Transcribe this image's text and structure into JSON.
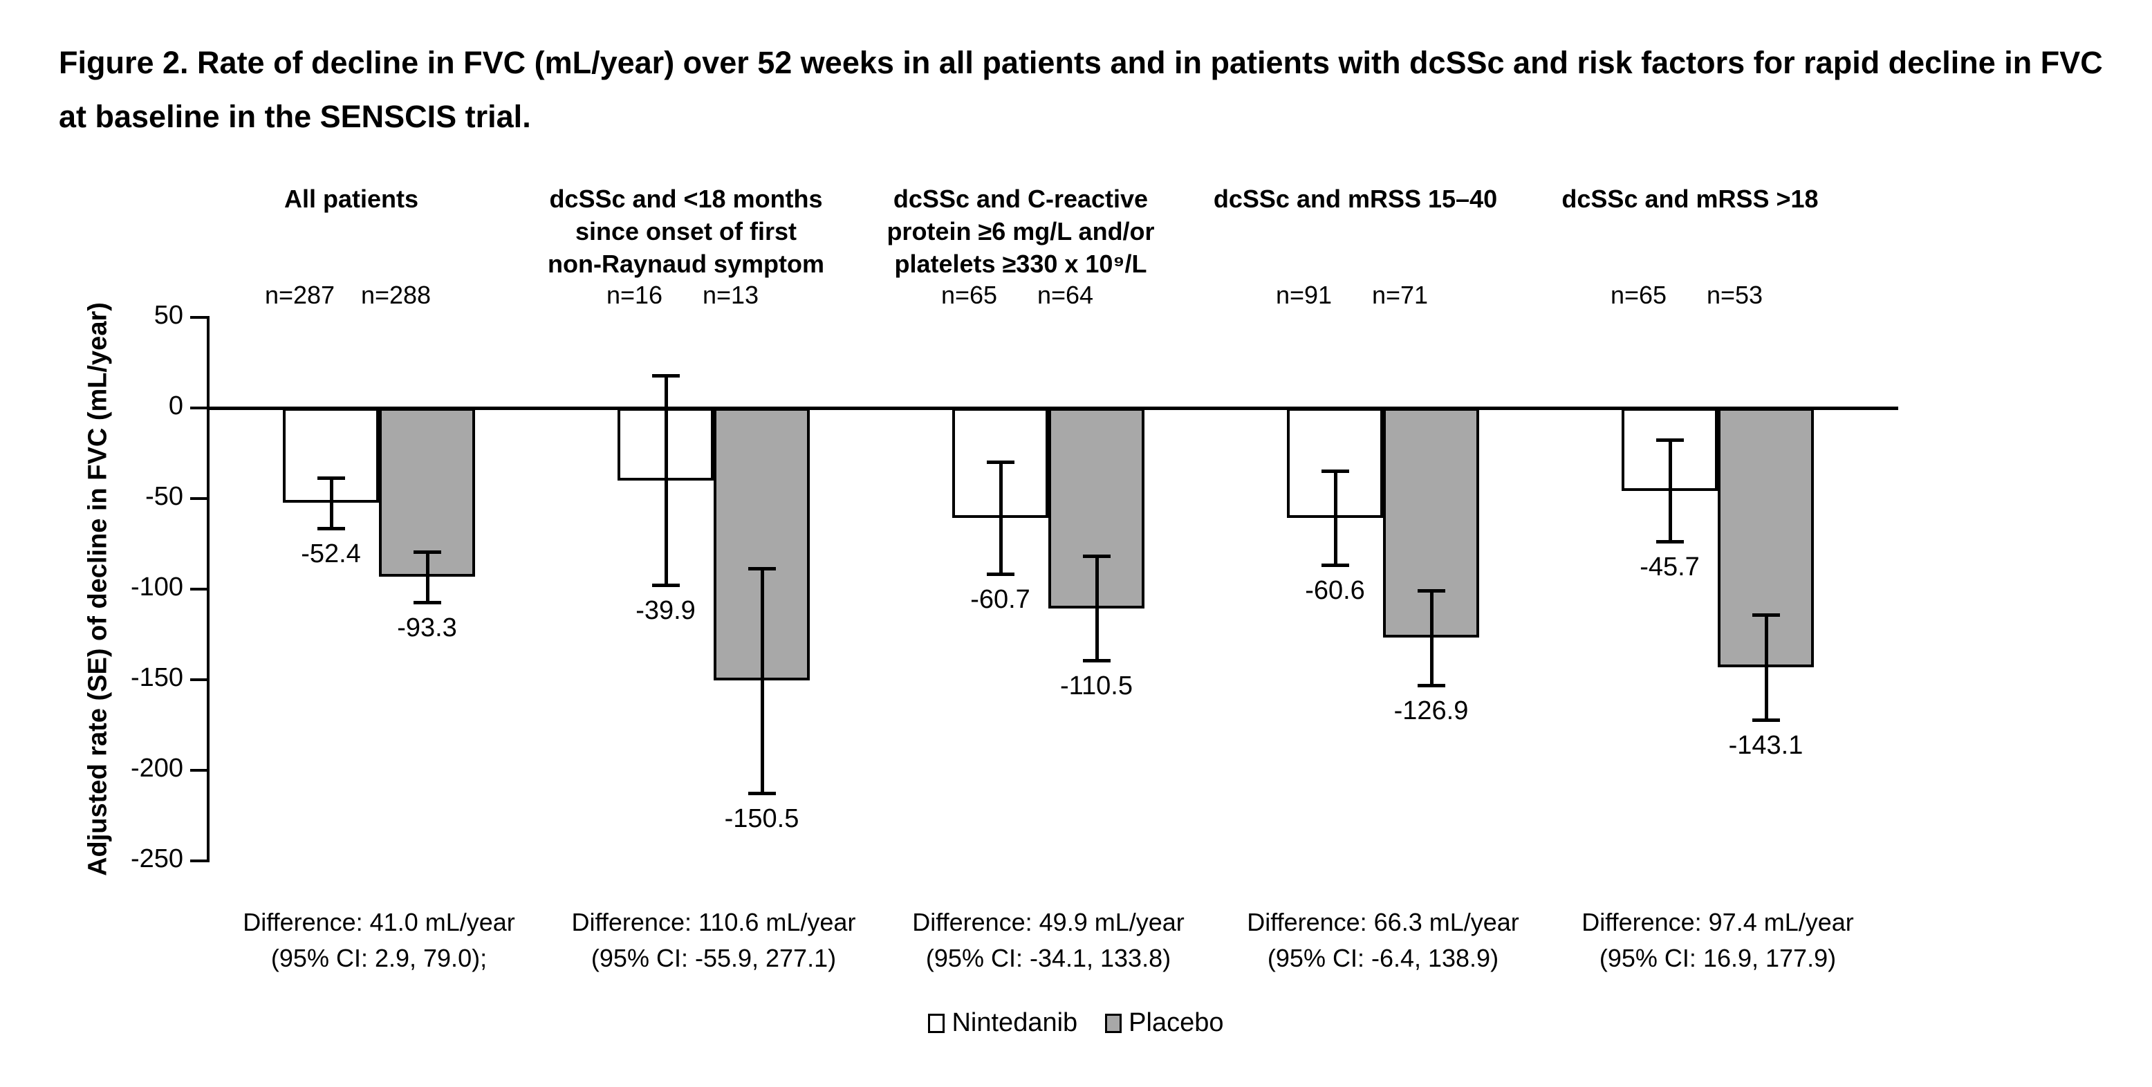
{
  "figure_title": "Figure 2. Rate of decline in FVC (mL/year) over 52 weeks in all patients and in patients with dcSSc and risk factors for rapid decline in FVC at baseline in the SENSCIS trial.",
  "chart_data": {
    "type": "bar",
    "orientation": "vertical",
    "title": "Figure 2. Rate of decline in FVC (mL/year) over 52 weeks in all patients and in patients with dcSSc and risk factors for rapid decline in FVC at baseline in the SENSCIS trial.",
    "ylabel": "Adjusted rate (SE) of decline in FVC (mL/year)",
    "ylim": [
      -250,
      50
    ],
    "yticks": [
      50,
      0,
      -50,
      -100,
      -150,
      -200,
      -250
    ],
    "grid": false,
    "legend_position": "bottom",
    "series": [
      {
        "name": "Nintedanib",
        "color": "#ffffff",
        "border": "#000000"
      },
      {
        "name": "Placebo",
        "color": "#a8a8a8",
        "border": "#000000"
      }
    ],
    "error_bar_note": "SE whiskers; numeric SE not printed, estimated from axis",
    "groups": [
      {
        "label_lines": [
          "All patients"
        ],
        "n_labels": [
          "n=287",
          "n=288"
        ],
        "values": {
          "nintedanib": -52.4,
          "placebo": -93.3
        },
        "se_estimated": {
          "nintedanib": 14,
          "placebo": 14
        },
        "difference_lines": [
          "Difference: 41.0 mL/year",
          "(95% CI: 2.9, 79.0);"
        ]
      },
      {
        "label_lines": [
          "dcSSc and <18 months",
          "since onset of first",
          "non-Raynaud symptom"
        ],
        "n_labels": [
          "n=16",
          "n=13"
        ],
        "values": {
          "nintedanib": -39.9,
          "placebo": -150.5
        },
        "se_estimated": {
          "nintedanib": 58,
          "placebo": 62
        },
        "difference_lines": [
          "Difference: 110.6 mL/year",
          "(95% CI: -55.9, 277.1)"
        ]
      },
      {
        "label_lines": [
          "dcSSc and C-reactive",
          "protein ≥6 mg/L and/or",
          "platelets ≥330 x 10⁹/L"
        ],
        "n_labels": [
          "n=65",
          "n=64"
        ],
        "values": {
          "nintedanib": -60.7,
          "placebo": -110.5
        },
        "se_estimated": {
          "nintedanib": 31,
          "placebo": 29
        },
        "difference_lines": [
          "Difference: 49.9 mL/year",
          "(95% CI: -34.1, 133.8)"
        ]
      },
      {
        "label_lines": [
          "dcSSc and mRSS 15–40"
        ],
        "n_labels": [
          "n=91",
          "n=71"
        ],
        "values": {
          "nintedanib": -60.6,
          "placebo": -126.9
        },
        "se_estimated": {
          "nintedanib": 26,
          "placebo": 26
        },
        "difference_lines": [
          "Difference: 66.3 mL/year",
          "(95% CI: -6.4, 138.9)"
        ]
      },
      {
        "label_lines": [
          "dcSSc and mRSS >18"
        ],
        "n_labels": [
          "n=65",
          "n=53"
        ],
        "values": {
          "nintedanib": -45.7,
          "placebo": -143.1
        },
        "se_estimated": {
          "nintedanib": 28,
          "placebo": 29
        },
        "difference_lines": [
          "Difference: 97.4 mL/year",
          "(95% CI: 16.9, 177.9)"
        ]
      }
    ]
  }
}
